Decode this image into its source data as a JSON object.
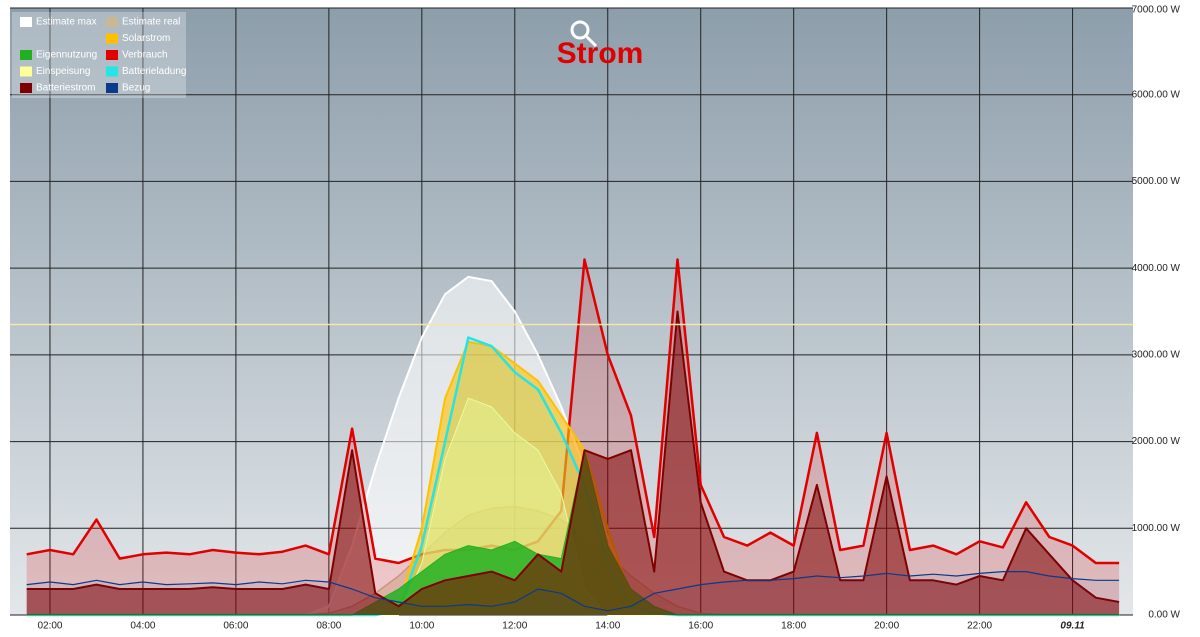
{
  "chart_data": {
    "type": "area-line",
    "title": "Strom",
    "x": [
      1.5,
      2,
      2.5,
      3,
      3.5,
      4,
      4.5,
      5,
      5.5,
      6,
      6.5,
      7,
      7.5,
      8,
      8.5,
      9,
      9.5,
      10,
      10.5,
      11,
      11.5,
      12,
      12.5,
      13,
      13.5,
      14,
      14.5,
      15,
      15.5,
      16,
      16.5,
      17,
      17.5,
      18,
      18.5,
      19,
      19.5,
      20,
      20.5,
      21,
      21.5,
      22,
      22.5,
      23,
      23.5,
      24,
      24.5,
      25
    ],
    "xlim": [
      1.14,
      25.3
    ],
    "xticks": [
      {
        "value": 2,
        "label": "02:00"
      },
      {
        "value": 4,
        "label": "04:00"
      },
      {
        "value": 6,
        "label": "06:00"
      },
      {
        "value": 8,
        "label": "08:00"
      },
      {
        "value": 10,
        "label": "10:00"
      },
      {
        "value": 12,
        "label": "12:00"
      },
      {
        "value": 14,
        "label": "14:00"
      },
      {
        "value": 16,
        "label": "16:00"
      },
      {
        "value": 18,
        "label": "18:00"
      },
      {
        "value": 20,
        "label": "20:00"
      },
      {
        "value": 22,
        "label": "22:00"
      },
      {
        "value": 24,
        "label": "09.11"
      }
    ],
    "ylim": [
      0,
      7000
    ],
    "yticks": [
      {
        "value": 0,
        "label": "0.00 W"
      },
      {
        "value": 1000,
        "label": "1000.00 W"
      },
      {
        "value": 2000,
        "label": "2000.00 W"
      },
      {
        "value": 3000,
        "label": "3000.00 W"
      },
      {
        "value": 4000,
        "label": "4000.00 W"
      },
      {
        "value": 5000,
        "label": "5000.00 W"
      },
      {
        "value": 6000,
        "label": "6000.00 W"
      },
      {
        "value": 7000,
        "label": "7000.00 W"
      }
    ],
    "grid": true,
    "legend": "top-left",
    "reference_line": {
      "value": 3350,
      "color": "#f3e7a8"
    },
    "series": [
      {
        "name": "Estimate max",
        "color": "#ffffff",
        "values": [
          0,
          0,
          0,
          0,
          0,
          0,
          0,
          0,
          0,
          0,
          0,
          0,
          0,
          100,
          800,
          1700,
          2500,
          3200,
          3700,
          3900,
          3850,
          3500,
          3000,
          2400,
          1700,
          900,
          200,
          0,
          0,
          0,
          0,
          0,
          0,
          0,
          0,
          0,
          0,
          0,
          0,
          0,
          0,
          0,
          0,
          0,
          0,
          0,
          0,
          0
        ]
      },
      {
        "name": "Estimate real",
        "color": "#c8b896",
        "values": [
          0,
          0,
          0,
          0,
          0,
          0,
          0,
          0,
          0,
          0,
          0,
          0,
          0,
          20,
          100,
          250,
          450,
          700,
          950,
          1150,
          1230,
          1250,
          1200,
          1100,
          900,
          700,
          450,
          250,
          100,
          20,
          0,
          0,
          0,
          0,
          0,
          0,
          0,
          0,
          0,
          0,
          0,
          0,
          0,
          0,
          0,
          0,
          0,
          0
        ]
      },
      {
        "name": "Solarstrom",
        "color": "#ffc000",
        "values": [
          0,
          0,
          0,
          0,
          0,
          0,
          0,
          0,
          0,
          0,
          0,
          0,
          0,
          0,
          0,
          0,
          100,
          1000,
          2500,
          3150,
          3100,
          2900,
          2700,
          2300,
          1900,
          1000,
          200,
          50,
          0,
          0,
          0,
          0,
          0,
          0,
          0,
          0,
          0,
          0,
          0,
          0,
          0,
          0,
          0,
          0,
          0,
          0,
          0,
          0
        ]
      },
      {
        "name": "Eigennutzung",
        "color": "#22b022",
        "values": [
          0,
          0,
          0,
          0,
          0,
          0,
          0,
          0,
          0,
          0,
          0,
          0,
          0,
          0,
          0,
          150,
          300,
          500,
          700,
          800,
          750,
          850,
          700,
          650,
          1900,
          800,
          300,
          100,
          0,
          0,
          0,
          0,
          0,
          0,
          0,
          0,
          0,
          0,
          0,
          0,
          0,
          0,
          0,
          0,
          0,
          0,
          0,
          0
        ]
      },
      {
        "name": "Verbrauch",
        "color": "#e00000",
        "values": [
          700,
          750,
          700,
          1100,
          650,
          700,
          720,
          700,
          750,
          720,
          700,
          730,
          800,
          700,
          2150,
          650,
          600,
          700,
          750,
          750,
          800,
          750,
          850,
          1200,
          4100,
          3000,
          2300,
          900,
          4100,
          1500,
          900,
          800,
          950,
          800,
          2100,
          750,
          800,
          2100,
          750,
          800,
          700,
          850,
          780,
          1300,
          900,
          800,
          600,
          600
        ]
      },
      {
        "name": "Einspeisung",
        "color": "#ffff99",
        "values": [
          0,
          0,
          0,
          0,
          0,
          0,
          0,
          0,
          0,
          0,
          0,
          0,
          0,
          0,
          0,
          0,
          0,
          600,
          1800,
          2500,
          2400,
          2100,
          1900,
          1400,
          300,
          0,
          0,
          0,
          0,
          0,
          0,
          0,
          0,
          0,
          0,
          0,
          0,
          0,
          0,
          0,
          0,
          0,
          0,
          0,
          0,
          0,
          0,
          0
        ]
      },
      {
        "name": "Batterieladung",
        "color": "#22e5e5",
        "values": [
          0,
          0,
          0,
          0,
          0,
          0,
          0,
          0,
          0,
          0,
          0,
          0,
          0,
          0,
          0,
          0,
          50,
          800,
          2000,
          3200,
          3100,
          2800,
          2600,
          2100,
          1500,
          600,
          100,
          20,
          0,
          0,
          0,
          0,
          0,
          0,
          0,
          0,
          0,
          0,
          0,
          0,
          0,
          0,
          0,
          0,
          0,
          0,
          0,
          0
        ]
      },
      {
        "name": "Batteriestrom",
        "color": "#800000",
        "values": [
          300,
          300,
          300,
          350,
          300,
          300,
          300,
          300,
          320,
          300,
          300,
          300,
          350,
          300,
          1900,
          250,
          100,
          300,
          400,
          450,
          500,
          400,
          700,
          500,
          1900,
          1800,
          1900,
          500,
          3500,
          1300,
          500,
          400,
          400,
          500,
          1500,
          400,
          400,
          1600,
          400,
          400,
          350,
          450,
          400,
          1000,
          700,
          400,
          200,
          150
        ]
      },
      {
        "name": "Bezug",
        "color": "#0a3a8a",
        "values": [
          350,
          380,
          350,
          400,
          350,
          380,
          350,
          360,
          370,
          350,
          380,
          360,
          400,
          380,
          300,
          200,
          150,
          100,
          100,
          120,
          100,
          150,
          300,
          250,
          100,
          50,
          100,
          250,
          300,
          350,
          380,
          400,
          400,
          420,
          450,
          430,
          450,
          480,
          450,
          470,
          450,
          480,
          500,
          500,
          450,
          420,
          400,
          400
        ]
      }
    ]
  }
}
